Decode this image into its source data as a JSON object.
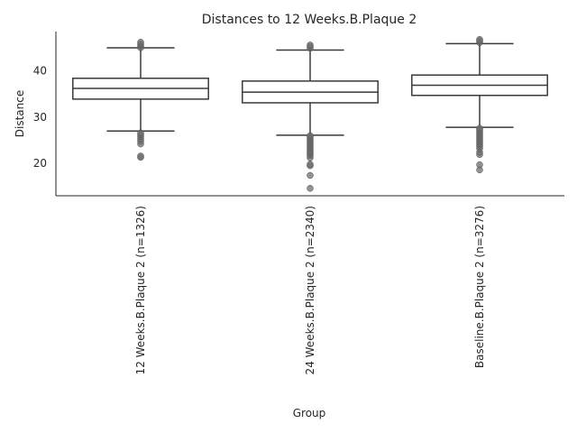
{
  "chart_data": {
    "type": "box",
    "title": "Distances to 12 Weeks.B.Plaque 2",
    "xlabel": "Group",
    "ylabel": "Distance",
    "ylim": [
      13,
      48.5
    ],
    "yticks": [
      20,
      30,
      40
    ],
    "grid": false,
    "categories": [
      "12 Weeks.B.Plaque 2 (n=1326)",
      "24 Weeks.B.Plaque 2 (n=2340)",
      "Baseline.B.Plaque 2 (n=3276)"
    ],
    "boxes": [
      {
        "whisker_low": 27.0,
        "q1": 33.9,
        "median": 36.2,
        "q3": 38.4,
        "whisker_high": 45.0,
        "fliers": [
          21.3,
          21.6,
          24.2,
          24.8,
          25.3,
          25.8,
          26.2,
          26.6,
          45.0,
          45.4,
          45.8,
          46.2
        ]
      },
      {
        "whisker_low": 26.1,
        "q1": 33.1,
        "median": 35.4,
        "q3": 37.8,
        "whisker_high": 44.5,
        "fliers": [
          14.6,
          17.4,
          19.5,
          19.8,
          21.2,
          21.7,
          22.1,
          22.5,
          22.9,
          23.3,
          23.7,
          24.1,
          24.5,
          24.9,
          25.3,
          25.7,
          26.0,
          44.9,
          45.3,
          45.6
        ]
      },
      {
        "whisker_low": 27.8,
        "q1": 34.7,
        "median": 36.9,
        "q3": 39.1,
        "whisker_high": 45.9,
        "fliers": [
          18.6,
          19.7,
          21.9,
          22.4,
          23.2,
          23.7,
          24.1,
          24.5,
          24.9,
          25.3,
          25.7,
          26.1,
          26.5,
          26.9,
          27.3,
          27.6,
          46.1,
          46.5,
          46.8
        ]
      }
    ]
  }
}
